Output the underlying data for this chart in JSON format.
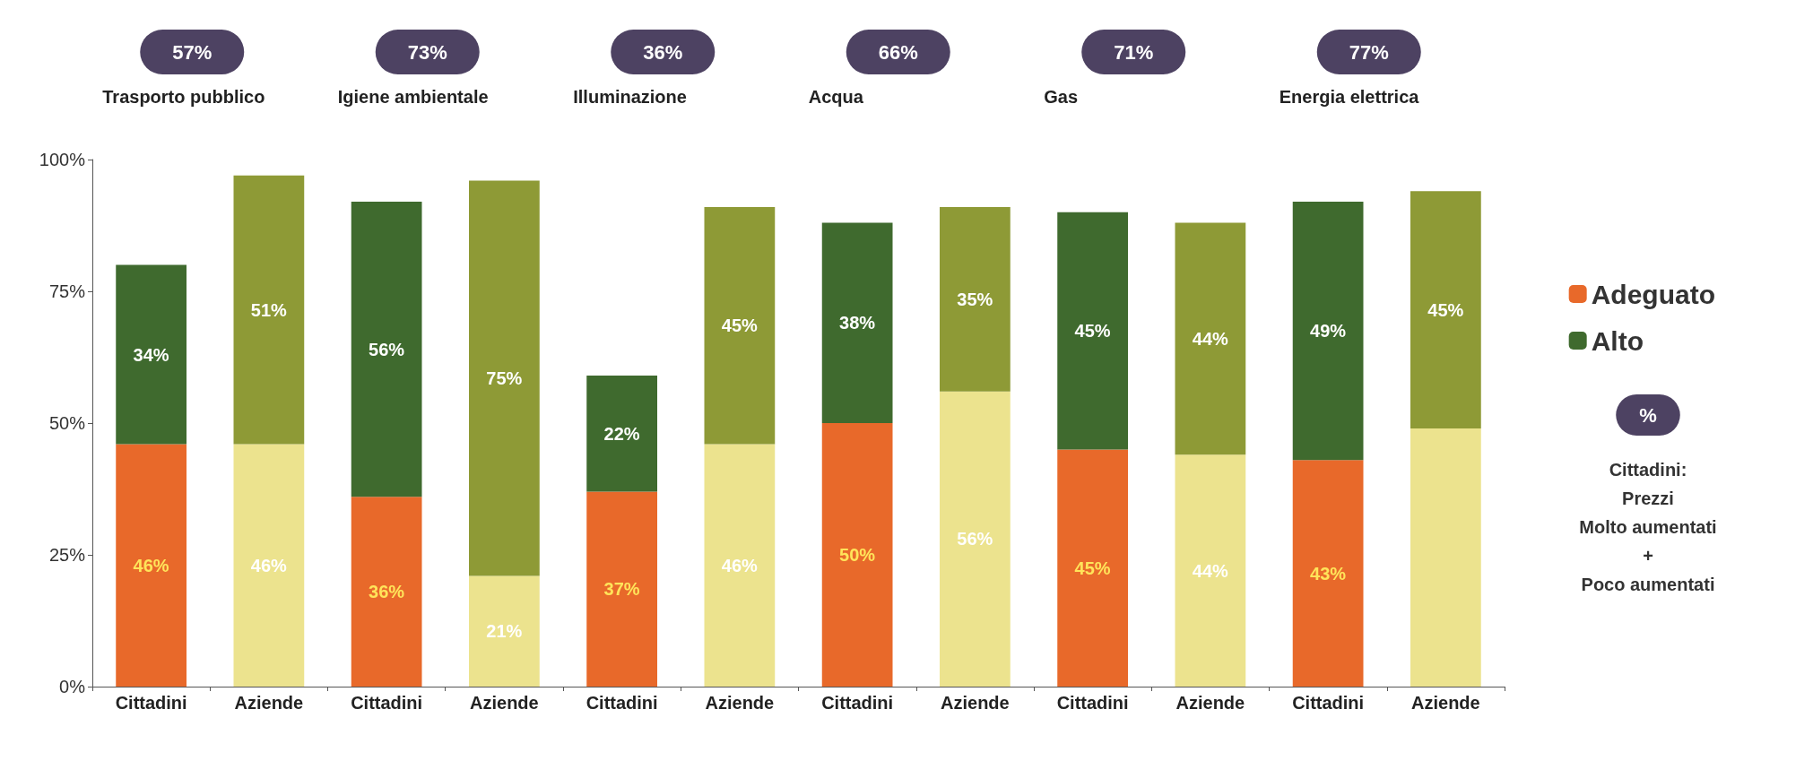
{
  "chart_data": {
    "type": "bar",
    "stacked": true,
    "categories": [
      "Cittadini",
      "Aziende",
      "Cittadini",
      "Aziende",
      "Cittadini",
      "Aziende",
      "Cittadini",
      "Aziende",
      "Cittadini",
      "Aziende",
      "Cittadini",
      "Aziende"
    ],
    "series": [
      {
        "name": "Adeguato",
        "color": "#e8692a",
        "colors": [
          "#e8692a",
          "#ece38e",
          "#e8692a",
          "#ece38e",
          "#e8692a",
          "#ece38e",
          "#e8692a",
          "#ece38e",
          "#e8692a",
          "#ece38e",
          "#e8692a",
          "#ece38e"
        ],
        "values": [
          46,
          46,
          36,
          21,
          37,
          46,
          50,
          56,
          45,
          44,
          43,
          49
        ],
        "value_labels": [
          "46%",
          "46%",
          "36%",
          "21%",
          "37%",
          "46%",
          "50%",
          "56%",
          "45%",
          "44%",
          "43%",
          null
        ]
      },
      {
        "name": "Alto",
        "color": "#3f6a2e",
        "colors": [
          "#3f6a2e",
          "#8e9a36",
          "#3f6a2e",
          "#8e9a36",
          "#3f6a2e",
          "#8e9a36",
          "#3f6a2e",
          "#8e9a36",
          "#3f6a2e",
          "#8e9a36",
          "#3f6a2e",
          "#8e9a36"
        ],
        "values": [
          34,
          51,
          56,
          75,
          22,
          45,
          38,
          35,
          45,
          44,
          49,
          45
        ],
        "value_labels": [
          "34%",
          "51%",
          "56%",
          "75%",
          "22%",
          "45%",
          "38%",
          "35%",
          "45%",
          "44%",
          "49%",
          "45%"
        ]
      }
    ],
    "ylim": [
      0,
      100
    ],
    "yticks": [
      {
        "value": 0,
        "label": "0%"
      },
      {
        "value": 25,
        "label": "25%"
      },
      {
        "value": 50,
        "label": "50%"
      },
      {
        "value": 75,
        "label": "75%"
      },
      {
        "value": 100,
        "label": "100%"
      }
    ],
    "grid": false,
    "legend": "right",
    "annotations": [
      "Trasporto pubblico",
      "Igiene ambientale",
      "Illuminazione",
      "Acqua",
      "Gas",
      "Energia elettrica",
      "57%",
      "73%",
      "36%",
      "66%",
      "71%",
      "77%",
      "%",
      "Cittadini:\nPrezzi\nMolto aumentati\n+\nPoco aumentati"
    ]
  }
}
